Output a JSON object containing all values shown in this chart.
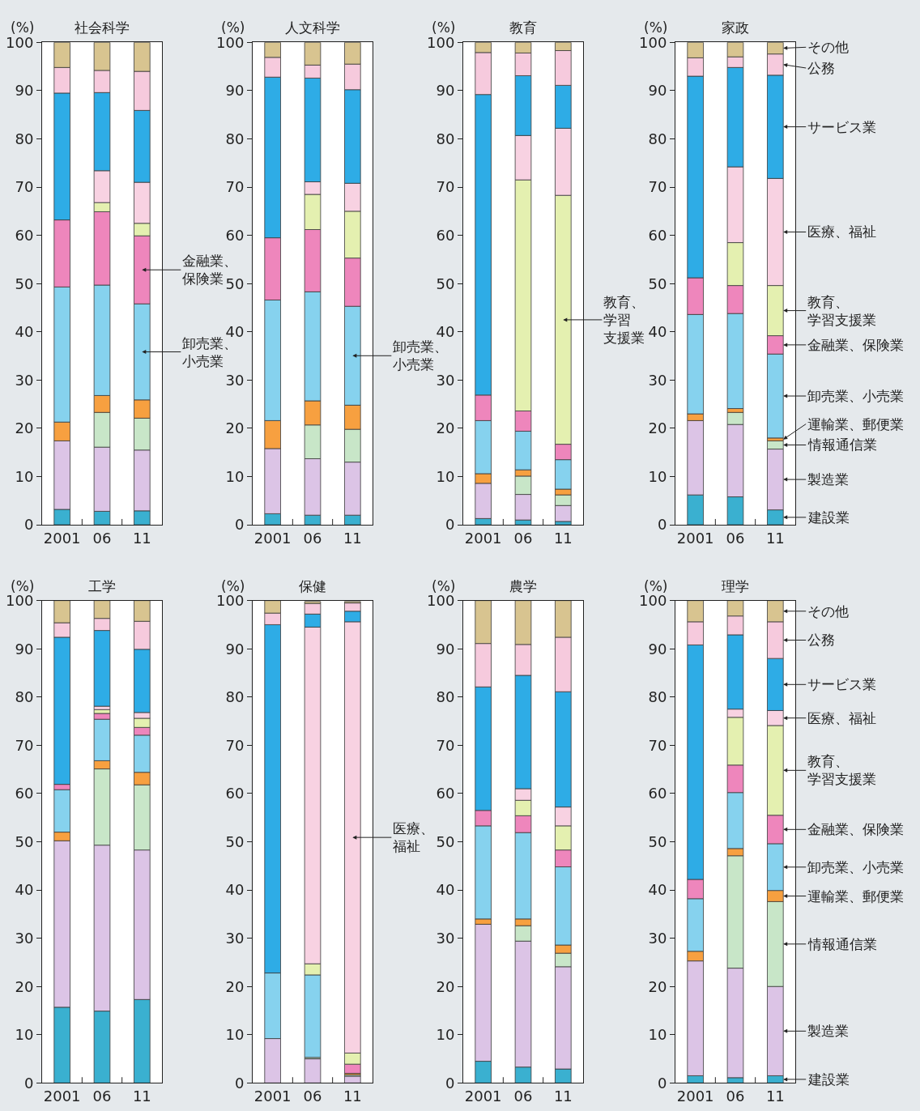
{
  "chart_data": [
    {
      "type": "bar",
      "stacked": true,
      "title": "社会科学",
      "ylabel": "(%)",
      "categories": [
        "2001",
        "06",
        "11"
      ],
      "ylim": [
        0,
        100
      ],
      "yticks": [
        0,
        10,
        20,
        30,
        40,
        50,
        60,
        70,
        80,
        90,
        100
      ],
      "series": [
        {
          "color": "#3ab0d0",
          "values": [
            3.2,
            2.8,
            2.9
          ]
        },
        {
          "color": "#dcc4e6",
          "values": [
            14.2,
            13.3,
            12.6
          ]
        },
        {
          "color": "#c8e6c8",
          "values": [
            null,
            7.2,
            6.6
          ]
        },
        {
          "color": "#f7a040",
          "values": [
            3.9,
            3.5,
            3.8
          ]
        },
        {
          "name": "卸売業、小売業",
          "color": "#86d2ee",
          "values": [
            28.0,
            22.9,
            19.9
          ]
        },
        {
          "name": "金融業、保険業",
          "color": "#ee86bc",
          "values": [
            13.9,
            15.2,
            14.1
          ]
        },
        {
          "color": "#e4f0b0",
          "values": [
            null,
            1.9,
            2.6
          ]
        },
        {
          "color": "#f8d2e2",
          "values": [
            null,
            6.6,
            8.5
          ]
        },
        {
          "color": "#2eace6",
          "values": [
            26.3,
            16.2,
            14.9
          ]
        },
        {
          "color": "#f6cadd",
          "values": [
            5.3,
            4.6,
            8.1
          ]
        },
        {
          "color": "#d8c490",
          "values": [
            5.2,
            5.8,
            6.0
          ]
        }
      ]
    },
    {
      "type": "bar",
      "stacked": true,
      "title": "人文科学",
      "ylabel": "(%)",
      "categories": [
        "2001",
        "06",
        "11"
      ],
      "ylim": [
        0,
        100
      ],
      "yticks": [
        0,
        10,
        20,
        30,
        40,
        50,
        60,
        70,
        80,
        90,
        100
      ],
      "series": [
        {
          "color": "#3ab0d0",
          "values": [
            2.3,
            2.0,
            2.0
          ]
        },
        {
          "color": "#dcc4e6",
          "values": [
            13.5,
            11.7,
            11.0
          ]
        },
        {
          "color": "#c8e6c8",
          "values": [
            null,
            7.0,
            6.8
          ]
        },
        {
          "color": "#f7a040",
          "values": [
            5.8,
            5.0,
            5.0
          ]
        },
        {
          "name": "卸売業、小売業",
          "color": "#86d2ee",
          "values": [
            25.0,
            22.6,
            20.5
          ]
        },
        {
          "color": "#ee86bc",
          "values": [
            12.9,
            12.9,
            10.0
          ]
        },
        {
          "color": "#e4f0b0",
          "values": [
            null,
            7.3,
            9.7
          ]
        },
        {
          "color": "#f8d2e2",
          "values": [
            null,
            2.6,
            5.8
          ]
        },
        {
          "color": "#2eace6",
          "values": [
            33.3,
            21.5,
            19.4
          ]
        },
        {
          "color": "#f6cadd",
          "values": [
            4.1,
            2.7,
            5.3
          ]
        },
        {
          "color": "#d8c490",
          "values": [
            3.1,
            4.7,
            4.5
          ]
        }
      ]
    },
    {
      "type": "bar",
      "stacked": true,
      "title": "教育",
      "ylabel": "(%)",
      "categories": [
        "2001",
        "06",
        "11"
      ],
      "ylim": [
        0,
        100
      ],
      "yticks": [
        0,
        10,
        20,
        30,
        40,
        50,
        60,
        70,
        80,
        90,
        100
      ],
      "series": [
        {
          "color": "#3ab0d0",
          "values": [
            1.3,
            1.0,
            0.7
          ]
        },
        {
          "color": "#dcc4e6",
          "values": [
            7.3,
            5.3,
            3.3
          ]
        },
        {
          "color": "#c8e6c8",
          "values": [
            null,
            3.8,
            2.2
          ]
        },
        {
          "color": "#f7a040",
          "values": [
            2.0,
            1.3,
            1.2
          ]
        },
        {
          "color": "#86d2ee",
          "values": [
            11.0,
            8.0,
            6.1
          ]
        },
        {
          "color": "#ee86bc",
          "values": [
            5.3,
            4.2,
            3.2
          ]
        },
        {
          "name": "教育、学習支援業",
          "color": "#e4f0b0",
          "values": [
            null,
            47.9,
            51.6
          ]
        },
        {
          "color": "#f8d2e2",
          "values": [
            null,
            9.2,
            13.9
          ]
        },
        {
          "color": "#2eace6",
          "values": [
            62.3,
            12.4,
            8.9
          ]
        },
        {
          "color": "#f6cadd",
          "values": [
            8.7,
            4.7,
            7.2
          ]
        },
        {
          "color": "#d8c490",
          "values": [
            2.1,
            2.2,
            1.7
          ]
        }
      ]
    },
    {
      "type": "bar",
      "stacked": true,
      "legend": "right",
      "title": "家政",
      "ylabel": "(%)",
      "categories": [
        "2001",
        "06",
        "11"
      ],
      "ylim": [
        0,
        100
      ],
      "yticks": [
        0,
        10,
        20,
        30,
        40,
        50,
        60,
        70,
        80,
        90,
        100
      ],
      "series": [
        {
          "name": "建設業",
          "color": "#3ab0d0",
          "values": [
            6.2,
            5.8,
            3.1
          ]
        },
        {
          "name": "製造業",
          "color": "#dcc4e6",
          "values": [
            15.4,
            15.0,
            12.6
          ]
        },
        {
          "name": "情報通信業",
          "color": "#c8e6c8",
          "values": [
            null,
            2.5,
            1.7
          ]
        },
        {
          "name": "運輸業、郵便業",
          "color": "#f7a040",
          "values": [
            1.4,
            0.8,
            0.6
          ]
        },
        {
          "name": "卸売業、小売業",
          "color": "#86d2ee",
          "values": [
            20.6,
            19.7,
            17.4
          ]
        },
        {
          "name": "金融業、保険業",
          "color": "#ee86bc",
          "values": [
            7.6,
            5.8,
            3.8
          ]
        },
        {
          "name": "教育、学習支援業",
          "color": "#e4f0b0",
          "values": [
            null,
            8.9,
            10.4
          ]
        },
        {
          "name": "医療、福祉",
          "color": "#f8d2e2",
          "values": [
            null,
            15.7,
            22.2
          ]
        },
        {
          "name": "サービス業",
          "color": "#2eace6",
          "values": [
            41.8,
            20.6,
            21.4
          ]
        },
        {
          "name": "公務",
          "color": "#f6cadd",
          "values": [
            3.8,
            2.2,
            4.4
          ]
        },
        {
          "name": "その他",
          "color": "#d8c490",
          "values": [
            3.2,
            3.0,
            2.4
          ]
        }
      ]
    },
    {
      "type": "bar",
      "stacked": true,
      "title": "工学",
      "ylabel": "(%)",
      "categories": [
        "2001",
        "06",
        "11"
      ],
      "ylim": [
        0,
        100
      ],
      "yticks": [
        0,
        10,
        20,
        30,
        40,
        50,
        60,
        70,
        80,
        90,
        100
      ],
      "series": [
        {
          "color": "#3ab0d0",
          "values": [
            15.7,
            14.9,
            17.3
          ]
        },
        {
          "color": "#dcc4e6",
          "values": [
            34.5,
            34.4,
            31.0
          ]
        },
        {
          "color": "#c8e6c8",
          "values": [
            null,
            15.8,
            13.5
          ]
        },
        {
          "color": "#f7a040",
          "values": [
            1.8,
            1.7,
            2.6
          ]
        },
        {
          "color": "#86d2ee",
          "values": [
            8.8,
            8.6,
            7.7
          ]
        },
        {
          "color": "#ee86bc",
          "values": [
            1.1,
            1.2,
            1.6
          ]
        },
        {
          "color": "#e4f0b0",
          "values": [
            null,
            0.8,
            1.9
          ]
        },
        {
          "color": "#f8d2e2",
          "values": [
            null,
            0.7,
            1.2
          ]
        },
        {
          "color": "#2eace6",
          "values": [
            30.5,
            15.7,
            13.1
          ]
        },
        {
          "color": "#f6cadd",
          "values": [
            3.0,
            2.5,
            5.8
          ]
        },
        {
          "color": "#d8c490",
          "values": [
            4.6,
            3.7,
            4.3
          ]
        }
      ]
    },
    {
      "type": "bar",
      "stacked": true,
      "title": "保健",
      "ylabel": "(%)",
      "categories": [
        "2001",
        "06",
        "11"
      ],
      "ylim": [
        0,
        100
      ],
      "yticks": [
        0,
        10,
        20,
        30,
        40,
        50,
        60,
        70,
        80,
        90,
        100
      ],
      "series": [
        {
          "color": "#3ab0d0",
          "values": [
            null,
            null,
            null
          ]
        },
        {
          "color": "#dcc4e6",
          "values": [
            9.2,
            5.0,
            1.4
          ]
        },
        {
          "color": "#c8e6c8",
          "values": [
            null,
            0.3,
            0.3
          ]
        },
        {
          "color": "#f7a040",
          "values": [
            null,
            null,
            0.3
          ]
        },
        {
          "color": "#86d2ee",
          "values": [
            13.6,
            17.1,
            null
          ]
        },
        {
          "color": "#ee86bc",
          "values": [
            null,
            null,
            1.9
          ]
        },
        {
          "color": "#e4f0b0",
          "values": [
            null,
            2.3,
            2.3
          ]
        },
        {
          "name": "医療、福祉",
          "color": "#f8d2e2",
          "values": [
            null,
            69.8,
            89.4
          ]
        },
        {
          "color": "#2eace6",
          "values": [
            72.2,
            2.7,
            2.2
          ]
        },
        {
          "color": "#f6cadd",
          "values": [
            2.4,
            2.2,
            1.7
          ]
        },
        {
          "color": "#d8c490",
          "values": [
            2.6,
            0.4,
            0.3
          ]
        }
      ]
    },
    {
      "type": "bar",
      "stacked": true,
      "title": "農学",
      "ylabel": "(%)",
      "categories": [
        "2001",
        "06",
        "11"
      ],
      "ylim": [
        0,
        100
      ],
      "yticks": [
        0,
        10,
        20,
        30,
        40,
        50,
        60,
        70,
        80,
        90,
        100
      ],
      "series": [
        {
          "color": "#3ab0d0",
          "values": [
            4.5,
            3.3,
            2.9
          ]
        },
        {
          "color": "#dcc4e6",
          "values": [
            28.4,
            26.1,
            21.2
          ]
        },
        {
          "color": "#c8e6c8",
          "values": [
            null,
            3.2,
            2.8
          ]
        },
        {
          "color": "#f7a040",
          "values": [
            1.1,
            1.4,
            1.7
          ]
        },
        {
          "color": "#86d2ee",
          "values": [
            19.3,
            17.9,
            16.2
          ]
        },
        {
          "color": "#ee86bc",
          "values": [
            3.2,
            3.5,
            3.5
          ]
        },
        {
          "color": "#e4f0b0",
          "values": [
            null,
            3.2,
            5.0
          ]
        },
        {
          "color": "#f8d2e2",
          "values": [
            null,
            2.4,
            3.9
          ]
        },
        {
          "color": "#2eace6",
          "values": [
            25.6,
            23.5,
            23.9
          ]
        },
        {
          "color": "#f6cadd",
          "values": [
            9.0,
            6.4,
            11.3
          ]
        },
        {
          "color": "#d8c490",
          "values": [
            8.9,
            9.1,
            7.6
          ]
        }
      ]
    },
    {
      "type": "bar",
      "stacked": true,
      "legend": "right",
      "title": "理学",
      "ylabel": "(%)",
      "categories": [
        "2001",
        "06",
        "11"
      ],
      "ylim": [
        0,
        100
      ],
      "yticks": [
        0,
        10,
        20,
        30,
        40,
        50,
        60,
        70,
        80,
        90,
        100
      ],
      "series": [
        {
          "name": "建設業",
          "color": "#3ab0d0",
          "values": [
            1.5,
            1.1,
            1.5
          ]
        },
        {
          "name": "製造業",
          "color": "#dcc4e6",
          "values": [
            23.8,
            22.7,
            18.5
          ]
        },
        {
          "name": "情報通信業",
          "color": "#c8e6c8",
          "values": [
            null,
            23.3,
            17.6
          ]
        },
        {
          "name": "運輸業、郵便業",
          "color": "#f7a040",
          "values": [
            2.0,
            1.5,
            2.3
          ]
        },
        {
          "name": "卸売業、小売業",
          "color": "#86d2ee",
          "values": [
            10.9,
            11.6,
            9.7
          ]
        },
        {
          "name": "金融業、保険業",
          "color": "#ee86bc",
          "values": [
            4.0,
            5.7,
            5.9
          ]
        },
        {
          "name": "教育、学習支援業",
          "color": "#e4f0b0",
          "values": [
            null,
            9.9,
            18.6
          ]
        },
        {
          "name": "医療、福祉",
          "color": "#f8d2e2",
          "values": [
            null,
            1.7,
            3.1
          ]
        },
        {
          "name": "サービス業",
          "color": "#2eace6",
          "values": [
            48.6,
            15.4,
            10.8
          ]
        },
        {
          "name": "公務",
          "color": "#f6cadd",
          "values": [
            4.8,
            3.9,
            7.6
          ]
        },
        {
          "name": "その他",
          "color": "#d8c490",
          "values": [
            4.4,
            3.2,
            4.4
          ]
        }
      ]
    }
  ]
}
